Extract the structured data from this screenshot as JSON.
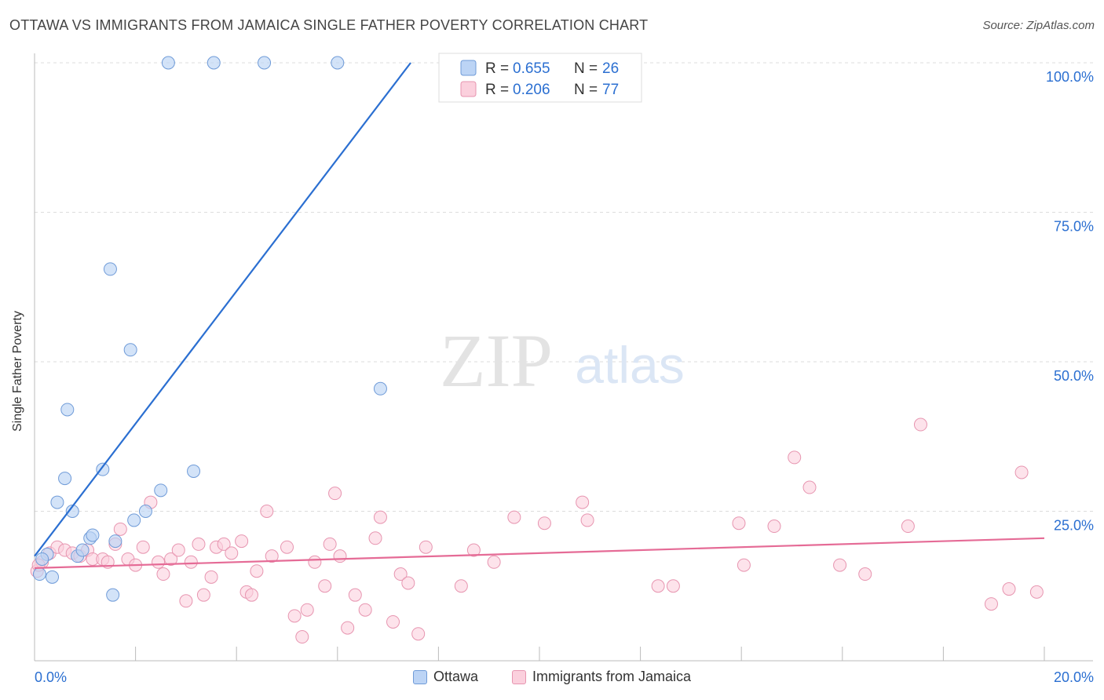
{
  "header": {
    "title": "OTTAWA VS IMMIGRANTS FROM JAMAICA SINGLE FATHER POVERTY CORRELATION CHART",
    "source": "Source: ZipAtlas.com"
  },
  "watermark": {
    "zip": "ZIP",
    "atlas": "atlas"
  },
  "colors": {
    "ottawa_fill": "#bcd4f5",
    "ottawa_stroke": "#6f9bd8",
    "ottawa_line": "#2b6fd1",
    "jamaica_fill": "#fbd0dd",
    "jamaica_stroke": "#e795b0",
    "jamaica_line": "#e56b96",
    "value_text": "#2b6fd1",
    "grid": "#dddddd"
  },
  "chart_data": {
    "type": "scatter",
    "title": "OTTAWA VS IMMIGRANTS FROM JAMAICA SINGLE FATHER POVERTY CORRELATION CHART",
    "xlabel": "",
    "ylabel": "Single Father Poverty",
    "xlim": [
      0,
      20
    ],
    "ylim": [
      0,
      100
    ],
    "x_tick_labels": [
      "0.0%",
      "20.0%"
    ],
    "y_tick_labels": [
      "100.0%",
      "75.0%",
      "50.0%",
      "25.0%"
    ],
    "y_tick_values": [
      100,
      75,
      50,
      25
    ],
    "grid": true,
    "legend_position": "top-center",
    "series": [
      {
        "name": "Ottawa",
        "r": "0.655",
        "n": "26",
        "trend": {
          "x": [
            0,
            7.45
          ],
          "y": [
            17.5,
            100
          ]
        },
        "points": [
          [
            0.1,
            14.5
          ],
          [
            0.25,
            17.8
          ],
          [
            0.35,
            14
          ],
          [
            0.45,
            26.5
          ],
          [
            0.6,
            30.5
          ],
          [
            0.65,
            42
          ],
          [
            0.75,
            25
          ],
          [
            0.85,
            17.5
          ],
          [
            0.95,
            18.5
          ],
          [
            1.1,
            20.5
          ],
          [
            1.15,
            21
          ],
          [
            1.35,
            32
          ],
          [
            1.5,
            65.5
          ],
          [
            1.55,
            11
          ],
          [
            1.6,
            20
          ],
          [
            1.9,
            52
          ],
          [
            1.97,
            23.5
          ],
          [
            2.2,
            25
          ],
          [
            2.5,
            28.5
          ],
          [
            2.65,
            100
          ],
          [
            3.15,
            31.7
          ],
          [
            3.55,
            100
          ],
          [
            4.55,
            100
          ],
          [
            6.0,
            100
          ],
          [
            6.85,
            45.5
          ],
          [
            0.15,
            17
          ]
        ]
      },
      {
        "name": "Immigrants from Jamaica",
        "r": "0.206",
        "n": "77",
        "trend": {
          "x": [
            0,
            20
          ],
          "y": [
            15.5,
            20.5
          ]
        },
        "points": [
          [
            0.05,
            15
          ],
          [
            0.15,
            16.5
          ],
          [
            0.3,
            18
          ],
          [
            0.45,
            19
          ],
          [
            0.6,
            18.5
          ],
          [
            0.75,
            18
          ],
          [
            0.9,
            17.5
          ],
          [
            1.05,
            18.5
          ],
          [
            1.15,
            17
          ],
          [
            1.35,
            17
          ],
          [
            1.45,
            16.5
          ],
          [
            1.6,
            19.5
          ],
          [
            1.7,
            22
          ],
          [
            1.85,
            17
          ],
          [
            2.0,
            16
          ],
          [
            2.15,
            19
          ],
          [
            2.3,
            26.5
          ],
          [
            2.45,
            16.5
          ],
          [
            2.55,
            14.5
          ],
          [
            2.7,
            17
          ],
          [
            2.85,
            18.5
          ],
          [
            3.0,
            10
          ],
          [
            3.1,
            16.5
          ],
          [
            3.25,
            19.5
          ],
          [
            3.35,
            11
          ],
          [
            3.5,
            14
          ],
          [
            3.6,
            19
          ],
          [
            3.75,
            19.5
          ],
          [
            3.9,
            18
          ],
          [
            4.1,
            20
          ],
          [
            4.2,
            11.5
          ],
          [
            4.3,
            11
          ],
          [
            4.4,
            15
          ],
          [
            4.6,
            25
          ],
          [
            4.7,
            17.5
          ],
          [
            5.0,
            19
          ],
          [
            5.15,
            7.5
          ],
          [
            5.3,
            4
          ],
          [
            5.4,
            8.5
          ],
          [
            5.55,
            16.5
          ],
          [
            5.75,
            12.5
          ],
          [
            5.85,
            19.5
          ],
          [
            5.95,
            28
          ],
          [
            6.05,
            17.5
          ],
          [
            6.2,
            5.5
          ],
          [
            6.35,
            11
          ],
          [
            6.55,
            8.5
          ],
          [
            6.75,
            20.5
          ],
          [
            6.85,
            24
          ],
          [
            7.1,
            6.5
          ],
          [
            7.25,
            14.5
          ],
          [
            7.4,
            13
          ],
          [
            7.6,
            4.5
          ],
          [
            7.75,
            19
          ],
          [
            8.45,
            12.5
          ],
          [
            8.7,
            18.5
          ],
          [
            9.1,
            16.5
          ],
          [
            9.5,
            24
          ],
          [
            10.1,
            23
          ],
          [
            10.85,
            26.5
          ],
          [
            10.95,
            23.5
          ],
          [
            12.35,
            12.5
          ],
          [
            12.65,
            12.5
          ],
          [
            13.95,
            23
          ],
          [
            14.05,
            16
          ],
          [
            14.65,
            22.5
          ],
          [
            15.05,
            34
          ],
          [
            15.35,
            29
          ],
          [
            15.95,
            16
          ],
          [
            16.45,
            14.5
          ],
          [
            17.3,
            22.5
          ],
          [
            17.55,
            39.5
          ],
          [
            18.95,
            9.5
          ],
          [
            19.3,
            12
          ],
          [
            19.55,
            31.5
          ],
          [
            19.85,
            11.5
          ],
          [
            0.08,
            16
          ]
        ]
      }
    ]
  }
}
